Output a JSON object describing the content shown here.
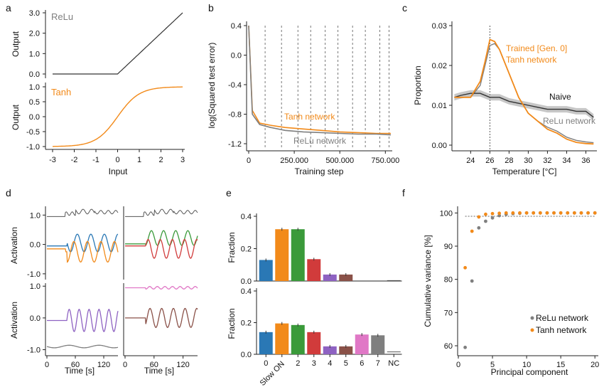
{
  "colors": {
    "orange": "#f28a1a",
    "gray": "#7f7f7f",
    "dark": "#333333",
    "blue": "#2a78b5",
    "green": "#3a9a3a",
    "red": "#d13b3b",
    "purple": "#8e62c2",
    "brown": "#8a5148",
    "pink": "#e078c6",
    "teal": "#2a78b5"
  },
  "panel_labels": [
    "a",
    "b",
    "c",
    "d",
    "e",
    "f"
  ],
  "chart_data": [
    {
      "id": "a",
      "type": "line",
      "subplots": [
        {
          "label": "ReLu",
          "ylabel": "Output",
          "yticks": [
            "0.0",
            "1.0",
            "2.0",
            "3.0"
          ],
          "ylim": [
            0,
            3
          ],
          "fn": "relu",
          "color": "dark"
        },
        {
          "label": "Tanh",
          "ylabel": "Output",
          "yticks": [
            "-1.0",
            "-0.5",
            "0.0",
            "0.5",
            "1.0"
          ],
          "ylim": [
            -1,
            1
          ],
          "fn": "tanh",
          "color": "orange"
        }
      ],
      "xlabel": "Input",
      "xticks": [
        "-3",
        "-2",
        "-1",
        "0",
        "1",
        "2",
        "3"
      ],
      "xlim": [
        -3,
        3
      ]
    },
    {
      "id": "b",
      "type": "line",
      "ylabel": "log(Squared test error)",
      "xlabel": "Training step",
      "yticks": [
        "0.4",
        "0.0",
        "-0.4",
        "-0.8",
        "-1.2"
      ],
      "ylim": [
        -1.2,
        0.4
      ],
      "xticks": [
        "0",
        "250.000",
        "500.000",
        "750.000"
      ],
      "xlim": [
        0,
        780000
      ],
      "vlines_x": [
        90000,
        180000,
        270000,
        340000,
        420000,
        490000,
        570000,
        640000,
        720000,
        770000
      ],
      "series": [
        {
          "name": "Tanh network",
          "color": "orange",
          "x": [
            0,
            20000,
            60000,
            120000,
            200000,
            300000,
            400000,
            500000,
            600000,
            700000,
            780000
          ],
          "y": [
            0.4,
            -0.75,
            -0.92,
            -0.95,
            -0.98,
            -1.0,
            -1.02,
            -1.04,
            -1.05,
            -1.06,
            -1.06
          ]
        },
        {
          "name": "ReLu network",
          "color": "gray",
          "x": [
            0,
            20000,
            60000,
            120000,
            200000,
            300000,
            400000,
            500000,
            600000,
            700000,
            780000
          ],
          "y": [
            0.4,
            -0.8,
            -0.94,
            -0.98,
            -1.02,
            -1.04,
            -1.05,
            -1.06,
            -1.07,
            -1.07,
            -1.08
          ]
        }
      ]
    },
    {
      "id": "c",
      "type": "line",
      "ylabel": "Proportion",
      "xlabel": "Temperature [°C]",
      "yticks": [
        "0.00",
        "0.01",
        "0.02",
        "0.03"
      ],
      "ylim": [
        0,
        0.03
      ],
      "xticks": [
        "24",
        "26",
        "28",
        "30",
        "32",
        "34",
        "36"
      ],
      "xlim": [
        22.2,
        37
      ],
      "vline_x": 26,
      "series": [
        {
          "name": "Trained [Gen. 0]\nTanh network",
          "color": "orange",
          "x": [
            22.3,
            23,
            24,
            25,
            25.5,
            26,
            26.5,
            27,
            28,
            29,
            30,
            31,
            32,
            33,
            34,
            35,
            36,
            36.8
          ],
          "y": [
            0.012,
            0.012,
            0.012,
            0.016,
            0.021,
            0.0265,
            0.026,
            0.024,
            0.018,
            0.012,
            0.008,
            0.006,
            0.004,
            0.003,
            0.0015,
            0.0007,
            0.0004,
            0.0003
          ]
        },
        {
          "name": "Naive",
          "color": "dark",
          "x": [
            22.3,
            23,
            24,
            25,
            26,
            27,
            28,
            29,
            30,
            31,
            32,
            33,
            34,
            35,
            36,
            36.8
          ],
          "y": [
            0.012,
            0.0125,
            0.013,
            0.013,
            0.012,
            0.012,
            0.011,
            0.0105,
            0.01,
            0.0095,
            0.009,
            0.009,
            0.009,
            0.0085,
            0.0085,
            0.007
          ]
        },
        {
          "name": "ReLu network",
          "color": "gray",
          "x": [
            22.3,
            23,
            24,
            25,
            25.5,
            26,
            26.5,
            27,
            28,
            29,
            30,
            31,
            32,
            33,
            34,
            35,
            36,
            36.8
          ],
          "y": [
            0.012,
            0.012,
            0.012,
            0.015,
            0.02,
            0.025,
            0.0255,
            0.024,
            0.018,
            0.012,
            0.008,
            0.006,
            0.0045,
            0.0035,
            0.002,
            0.0012,
            0.0008,
            0.0006
          ]
        }
      ]
    },
    {
      "id": "d",
      "type": "line",
      "ylabel": "Activation",
      "xlabel": "Time [s]",
      "yticks": [
        "1.0",
        "0.0",
        "-1.0"
      ],
      "xticks": [
        "0",
        "60",
        "120"
      ],
      "subplots": [
        {
          "colors": [
            "blue",
            "orange"
          ]
        },
        {
          "colors": [
            "green",
            "red"
          ]
        },
        {
          "colors": [
            "purple",
            "gray"
          ]
        },
        {
          "colors": [
            "pink",
            "brown"
          ]
        }
      ]
    },
    {
      "id": "e",
      "type": "bar",
      "ylabel": "Fraction",
      "categories": [
        "0",
        "Slow ON",
        "2",
        "3",
        "4",
        "5",
        "6",
        "7",
        "NC"
      ],
      "yticks": [
        "0.0",
        "0.2",
        "0.4"
      ],
      "ylim": [
        0,
        0.4
      ],
      "bar_colors": [
        "blue",
        "orange",
        "green",
        "red",
        "purple",
        "brown",
        "pink",
        "gray",
        "gray"
      ],
      "series": [
        {
          "values": [
            0.13,
            0.32,
            0.32,
            0.135,
            0.04,
            0.04,
            0.0,
            0.0,
            0.003
          ]
        },
        {
          "values": [
            0.14,
            0.195,
            0.185,
            0.14,
            0.05,
            0.05,
            0.125,
            0.12,
            0.015
          ]
        }
      ]
    },
    {
      "id": "f",
      "type": "scatter",
      "ylabel": "Cumulative variance [%]",
      "xlabel": "Principal component",
      "yticks": [
        "60",
        "70",
        "80",
        "90",
        "100"
      ],
      "ylim": [
        57,
        102
      ],
      "xticks": [
        "0",
        "5",
        "10",
        "15",
        "20"
      ],
      "xlim": [
        0,
        20.5
      ],
      "hline_y": 99,
      "series": [
        {
          "name": "ReLu network",
          "color": "gray",
          "x": [
            1,
            2,
            3,
            4,
            5,
            6,
            7,
            8,
            9,
            10,
            11,
            12,
            13,
            14,
            15,
            16,
            17,
            18,
            19,
            20
          ],
          "y": [
            59.5,
            79.5,
            95.5,
            97.5,
            98.5,
            99.2,
            99.6,
            99.8,
            99.9,
            100,
            100,
            100,
            100,
            100,
            100,
            100,
            100,
            100,
            100,
            100
          ]
        },
        {
          "name": "Tanh network",
          "color": "orange",
          "x": [
            1,
            2,
            3,
            4,
            5,
            6,
            7,
            8,
            9,
            10,
            11,
            12,
            13,
            14,
            15,
            16,
            17,
            18,
            19,
            20
          ],
          "y": [
            83.5,
            94.5,
            98.8,
            99.6,
            99.8,
            99.9,
            100,
            100,
            100,
            100,
            100,
            100,
            100,
            100,
            100,
            100,
            100,
            100,
            100,
            100
          ]
        }
      ]
    }
  ]
}
